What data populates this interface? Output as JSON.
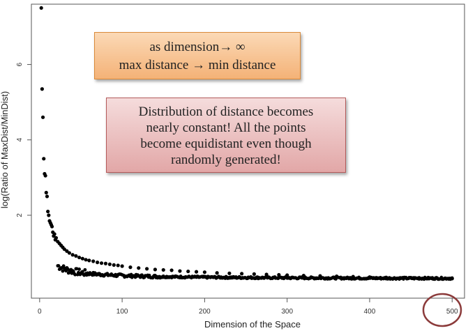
{
  "chart_data": {
    "type": "scatter",
    "title": "",
    "xlabel": "Dimension of the Space",
    "ylabel": "log(Ratio of MaxDist/MinDist)",
    "xlim": [
      -10,
      515
    ],
    "ylim": [
      -0.2,
      7.6
    ],
    "xticks": [
      0,
      100,
      200,
      300,
      400,
      500
    ],
    "yticks": [
      2,
      4,
      6
    ],
    "x": [
      2,
      3,
      4,
      5,
      6,
      7,
      8,
      9,
      10,
      11,
      12,
      13,
      14,
      15,
      16,
      17,
      18,
      19,
      20,
      22,
      24,
      26,
      28,
      30,
      33,
      36,
      40,
      44,
      48,
      52,
      56,
      60,
      65,
      70,
      75,
      80,
      85,
      90,
      95,
      100,
      110,
      120,
      130,
      140,
      150,
      160,
      170,
      180,
      190,
      200,
      215,
      230,
      245,
      260,
      275,
      290,
      300,
      320,
      340,
      360,
      380,
      400,
      420,
      440,
      460,
      480,
      500
    ],
    "y": [
      7.5,
      5.35,
      4.6,
      3.5,
      3.1,
      3.05,
      2.6,
      2.5,
      2.1,
      2.0,
      1.85,
      1.8,
      1.75,
      1.7,
      1.55,
      1.45,
      1.5,
      1.35,
      1.4,
      1.3,
      1.25,
      1.2,
      1.15,
      1.1,
      1.05,
      1.0,
      0.95,
      0.92,
      0.88,
      0.85,
      0.82,
      0.8,
      0.78,
      0.75,
      0.73,
      0.72,
      0.7,
      0.68,
      0.67,
      0.65,
      0.62,
      0.6,
      0.58,
      0.56,
      0.55,
      0.54,
      0.52,
      0.51,
      0.5,
      0.49,
      0.47,
      0.46,
      0.45,
      0.44,
      0.43,
      0.42,
      0.41,
      0.4,
      0.39,
      0.38,
      0.37,
      0.36,
      0.35,
      0.34,
      0.34,
      0.33,
      0.32
    ],
    "highlight_tick": 500
  },
  "annotations": {
    "box1": {
      "line1": "as dimension→ ∞",
      "line2": "max distance → min distance"
    },
    "box2": {
      "line1": "Distribution of distance becomes",
      "line2": "nearly constant! All the points",
      "line3": "become equidistant even though",
      "line4": "randomly generated!"
    }
  },
  "colors": {
    "points": "#000000",
    "circle": "#8b3a3a"
  }
}
